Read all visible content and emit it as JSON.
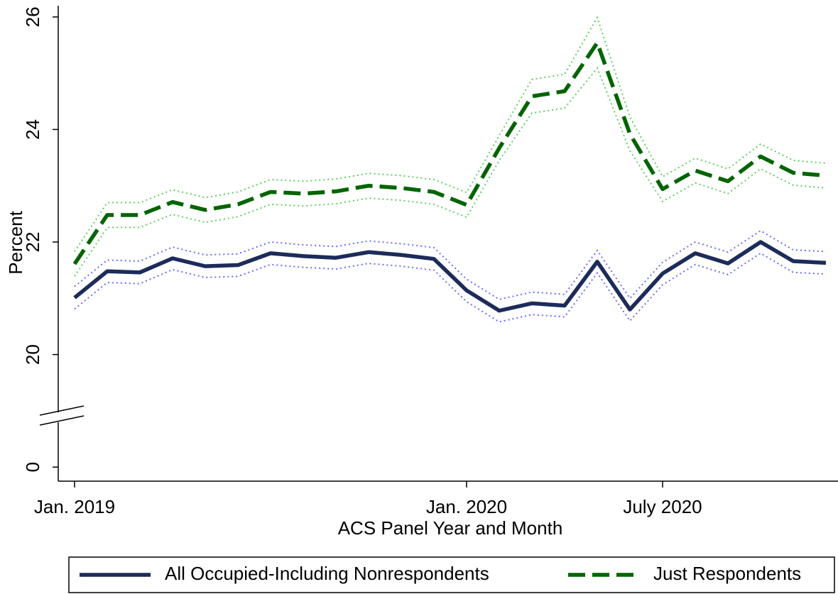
{
  "chart_data": {
    "type": "line",
    "x_label": "ACS Panel Year and Month",
    "y_label": "Percent",
    "x": [
      "2019-01",
      "2019-02",
      "2019-03",
      "2019-04",
      "2019-05",
      "2019-06",
      "2019-07",
      "2019-08",
      "2019-09",
      "2019-10",
      "2019-11",
      "2019-12",
      "2020-01",
      "2020-02",
      "2020-03",
      "2020-04",
      "2020-05",
      "2020-06",
      "2020-07",
      "2020-08",
      "2020-09",
      "2020-10",
      "2020-11",
      "2020-12"
    ],
    "xlim": [
      "2019-01",
      "2020-12"
    ],
    "xticks": [
      {
        "value": "2019-01",
        "label": "Jan. 2019"
      },
      {
        "value": "2020-01",
        "label": "Jan. 2020"
      },
      {
        "value": "2020-07",
        "label": "July 2020"
      }
    ],
    "ylim": [
      -0.25,
      26.2
    ],
    "ybreak": [
      0,
      18
    ],
    "yticks": [
      0,
      20,
      22,
      24,
      26
    ],
    "legend": "bottom",
    "series": [
      {
        "name": "All Occupied-Including Nonrespondents",
        "color": "#1c2b5a",
        "ci_color": "#6a6aff",
        "style": "solid",
        "values": [
          21.01,
          21.48,
          21.46,
          21.71,
          21.57,
          21.59,
          21.8,
          21.75,
          21.72,
          21.82,
          21.77,
          21.7,
          21.14,
          20.78,
          20.91,
          20.87,
          21.65,
          20.8,
          21.44,
          21.8,
          21.62,
          22.0,
          21.66,
          21.63
        ],
        "ci_lower": [
          20.81,
          21.28,
          21.26,
          21.51,
          21.37,
          21.39,
          21.6,
          21.55,
          21.52,
          21.62,
          21.57,
          21.5,
          20.94,
          20.58,
          20.71,
          20.67,
          21.45,
          20.6,
          21.24,
          21.6,
          21.42,
          21.8,
          21.46,
          21.43
        ],
        "ci_upper": [
          21.21,
          21.68,
          21.66,
          21.91,
          21.77,
          21.79,
          22.0,
          21.95,
          21.92,
          22.02,
          21.97,
          21.9,
          21.34,
          20.98,
          21.11,
          21.07,
          21.85,
          21.0,
          21.64,
          22.0,
          21.82,
          22.2,
          21.86,
          21.83
        ]
      },
      {
        "name": "Just Respondents",
        "color": "#006400",
        "ci_color": "#5fcf5f",
        "style": "dashed",
        "values": [
          21.61,
          22.48,
          22.48,
          22.71,
          22.57,
          22.67,
          22.89,
          22.86,
          22.9,
          23.0,
          22.96,
          22.89,
          22.66,
          23.67,
          24.59,
          24.68,
          25.54,
          23.92,
          22.94,
          23.27,
          23.08,
          23.52,
          23.23,
          23.18
        ],
        "ci_lower": [
          21.39,
          22.26,
          22.26,
          22.49,
          22.35,
          22.45,
          22.67,
          22.64,
          22.68,
          22.78,
          22.74,
          22.67,
          22.44,
          23.45,
          24.29,
          24.38,
          25.09,
          23.62,
          22.72,
          23.05,
          22.86,
          23.3,
          23.01,
          22.96
        ],
        "ci_upper": [
          21.83,
          22.7,
          22.7,
          22.93,
          22.79,
          22.89,
          23.11,
          23.08,
          23.12,
          23.22,
          23.18,
          23.11,
          22.88,
          23.89,
          24.89,
          24.98,
          25.99,
          24.22,
          23.16,
          23.49,
          23.3,
          23.74,
          23.45,
          23.4
        ]
      }
    ]
  }
}
